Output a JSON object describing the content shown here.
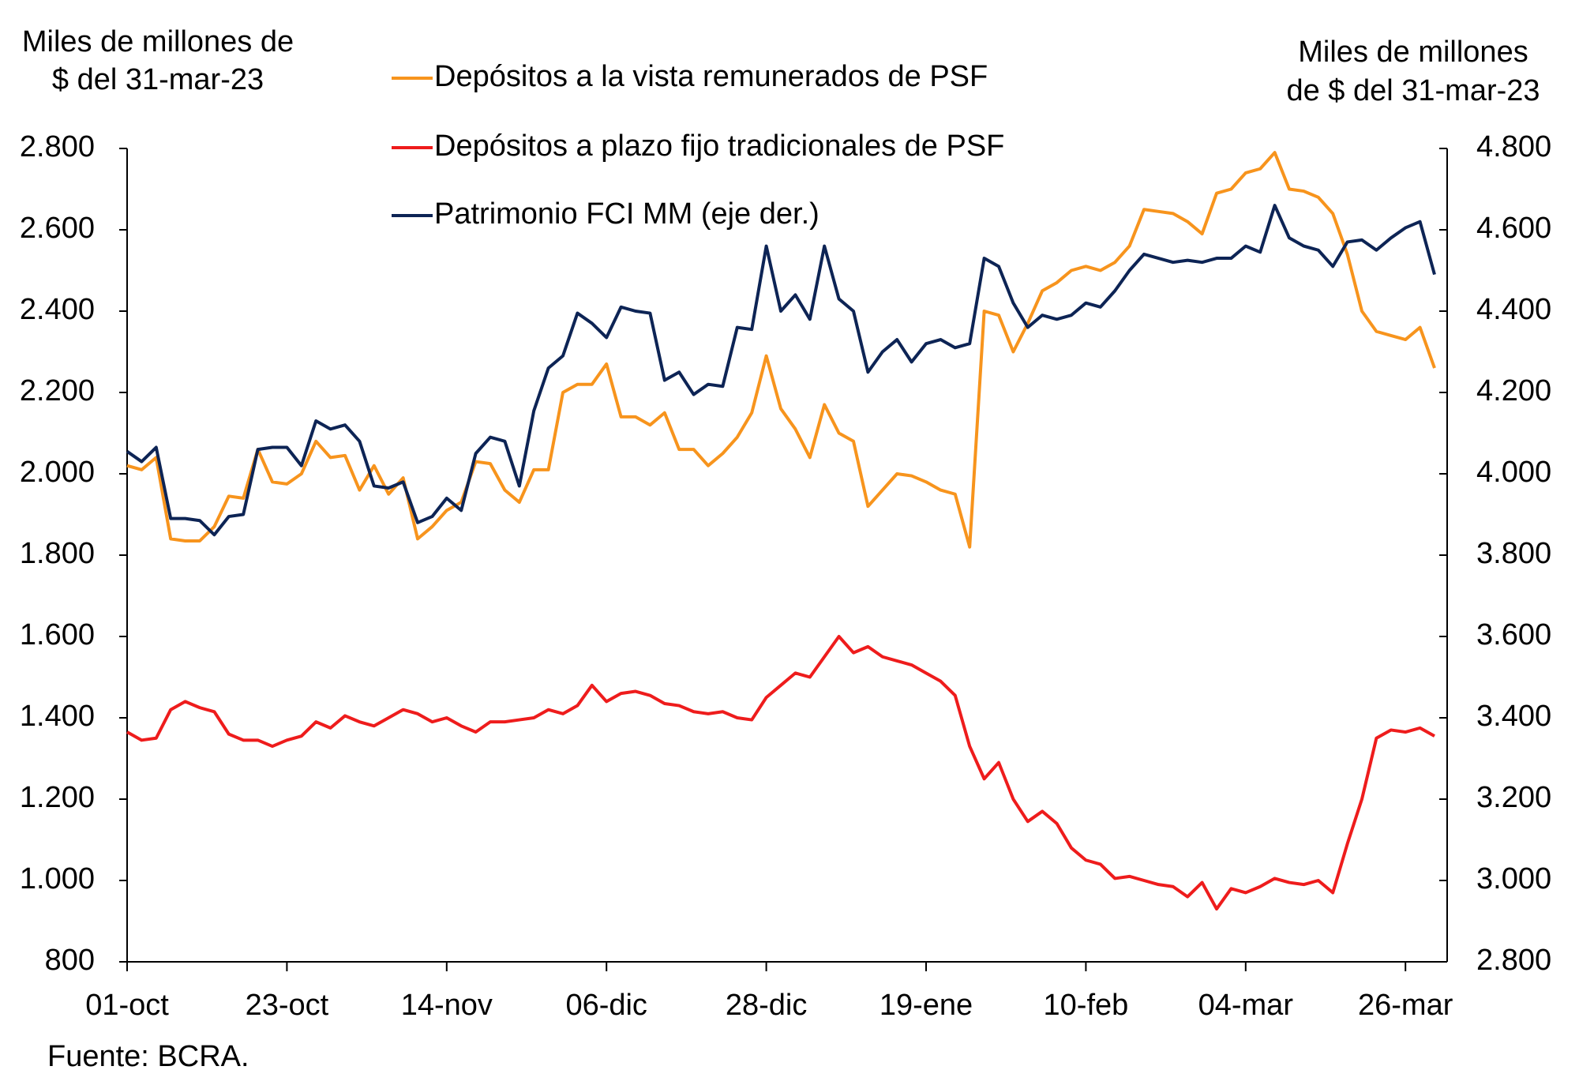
{
  "chart_data": {
    "type": "line",
    "ylabel": [
      "Miles de millones de",
      "$ del 31-mar-23"
    ],
    "y2label": [
      "Miles de millones",
      "de $ del 31-mar-23"
    ],
    "source": "Fuente: BCRA.",
    "categories": [
      "01-oct",
      null,
      null,
      null,
      null,
      null,
      null,
      null,
      null,
      null,
      null,
      "23-oct",
      null,
      null,
      null,
      null,
      null,
      null,
      null,
      null,
      null,
      null,
      "14-nov",
      null,
      null,
      null,
      null,
      null,
      null,
      null,
      null,
      null,
      null,
      "06-dic",
      null,
      null,
      null,
      null,
      null,
      null,
      null,
      null,
      null,
      null,
      "28-dic",
      null,
      null,
      null,
      null,
      null,
      null,
      null,
      null,
      null,
      null,
      "19-ene",
      null,
      null,
      null,
      null,
      null,
      null,
      null,
      null,
      null,
      null,
      "10-feb",
      null,
      null,
      null,
      null,
      null,
      null,
      null,
      null,
      null,
      null,
      "04-mar",
      null,
      null,
      null,
      null,
      null,
      null,
      null,
      null,
      null,
      null,
      "26-mar",
      null,
      null
    ],
    "series": [
      {
        "name": "Depósitos a la vista remunerados de PSF",
        "color": "#f7941d",
        "axis": "y",
        "values": [
          2020,
          2010,
          2040,
          1840,
          1835,
          1835,
          1870,
          1945,
          1940,
          2060,
          1980,
          1975,
          2000,
          2080,
          2040,
          2045,
          1960,
          2020,
          1950,
          1990,
          1840,
          1870,
          1910,
          1930,
          2030,
          2025,
          1960,
          1930,
          2010,
          2010,
          2200,
          2220,
          2220,
          2270,
          2140,
          2140,
          2120,
          2150,
          2060,
          2060,
          2020,
          2050,
          2090,
          2150,
          2290,
          2160,
          2110,
          2040,
          2170,
          2100,
          2080,
          1920,
          1960,
          2000,
          1995,
          1980,
          1960,
          1950,
          1820,
          2400,
          2390,
          2300,
          2370,
          2450,
          2470,
          2500,
          2510,
          2500,
          2520,
          2560,
          2650,
          2645,
          2640,
          2620,
          2590,
          2690,
          2700,
          2740,
          2750,
          2790,
          2700,
          2695,
          2680,
          2640,
          2540,
          2400,
          2350,
          2340,
          2330,
          2360,
          2260
        ]
      },
      {
        "name": "Depósitos a plazo fijo tradicionales de PSF",
        "color": "#ee1c1c",
        "axis": "y",
        "values": [
          1365,
          1345,
          1350,
          1420,
          1440,
          1425,
          1415,
          1360,
          1345,
          1345,
          1330,
          1345,
          1355,
          1390,
          1375,
          1405,
          1390,
          1380,
          1400,
          1420,
          1410,
          1390,
          1400,
          1380,
          1365,
          1390,
          1390,
          1395,
          1400,
          1420,
          1410,
          1430,
          1480,
          1440,
          1460,
          1465,
          1455,
          1435,
          1430,
          1415,
          1410,
          1415,
          1400,
          1395,
          1450,
          1480,
          1510,
          1500,
          1550,
          1600,
          1560,
          1575,
          1550,
          1540,
          1530,
          1510,
          1490,
          1455,
          1330,
          1250,
          1290,
          1200,
          1145,
          1170,
          1140,
          1080,
          1050,
          1040,
          1005,
          1010,
          1000,
          990,
          985,
          960,
          995,
          930,
          980,
          970,
          985,
          1005,
          995,
          990,
          1000,
          970,
          1090,
          1200,
          1350,
          1370,
          1365,
          1375,
          1355
        ]
      },
      {
        "name": "Patrimonio FCI MM (eje der.)",
        "color": "#0d2455",
        "axis": "y2",
        "values": [
          4055,
          4030,
          4065,
          3890,
          3890,
          3885,
          3850,
          3895,
          3900,
          4060,
          4065,
          4065,
          4020,
          4130,
          4110,
          4120,
          4080,
          3970,
          3965,
          3980,
          3880,
          3895,
          3940,
          3910,
          4050,
          4090,
          4080,
          3970,
          4155,
          4260,
          4290,
          4395,
          4370,
          4335,
          4410,
          4400,
          4395,
          4230,
          4250,
          4195,
          4220,
          4215,
          4360,
          4355,
          4560,
          4400,
          4440,
          4380,
          4560,
          4430,
          4400,
          4250,
          4300,
          4330,
          4275,
          4320,
          4330,
          4310,
          4320,
          4530,
          4510,
          4420,
          4360,
          4390,
          4380,
          4390,
          4420,
          4410,
          4450,
          4500,
          4540,
          4530,
          4520,
          4525,
          4520,
          4530,
          4530,
          4560,
          4545,
          4660,
          4580,
          4560,
          4550,
          4510,
          4570,
          4575,
          4550,
          4580,
          4605,
          4620,
          4490
        ]
      }
    ],
    "ylim": [
      800,
      2800
    ],
    "yticks": [
      800,
      {
        "value": 1000,
        "label": "1.000"
      },
      {
        "value": 1200,
        "label": "1.200"
      },
      {
        "value": 1400,
        "label": "1.400"
      },
      {
        "value": 1600,
        "label": "1.600"
      },
      {
        "value": 1800,
        "label": "1.800"
      },
      {
        "value": 2000,
        "label": "2.000"
      },
      {
        "value": 2200,
        "label": "2.200"
      },
      {
        "value": 2400,
        "label": "2.400"
      },
      {
        "value": 2600,
        "label": "2.600"
      },
      {
        "value": 2800,
        "label": "2.800"
      }
    ],
    "y2lim": [
      2800,
      4800
    ],
    "y2ticks": [
      {
        "value": 2800,
        "label": "2.800"
      },
      {
        "value": 3000,
        "label": "3.000"
      },
      {
        "value": 3200,
        "label": "3.200"
      },
      {
        "value": 3400,
        "label": "3.400"
      },
      {
        "value": 3600,
        "label": "3.600"
      },
      {
        "value": 3800,
        "label": "3.800"
      },
      {
        "value": 4000,
        "label": "4.000"
      },
      {
        "value": 4200,
        "label": "4.200"
      },
      {
        "value": 4400,
        "label": "4.400"
      },
      {
        "value": 4600,
        "label": "4.600"
      },
      {
        "value": 4800,
        "label": "4.800"
      }
    ],
    "grid": false,
    "legend": "top"
  }
}
